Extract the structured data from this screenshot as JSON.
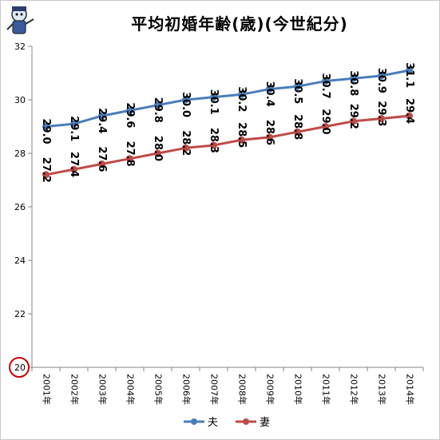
{
  "chart_data": {
    "type": "line",
    "title": "平均初婚年齢(歳)(今世紀分)",
    "categories": [
      "2001年",
      "2002年",
      "2003年",
      "2004年",
      "2005年",
      "2006年",
      "2007年",
      "2008年",
      "2009年",
      "2010年",
      "2011年",
      "2012年",
      "2013年",
      "2014年"
    ],
    "series": [
      {
        "name": "夫",
        "color": "#4a7ebb",
        "values": [
          29.0,
          29.1,
          29.4,
          29.6,
          29.8,
          30.0,
          30.1,
          30.2,
          30.4,
          30.5,
          30.7,
          30.8,
          30.9,
          31.1
        ]
      },
      {
        "name": "妻",
        "color": "#be4b48",
        "values": [
          27.2,
          27.4,
          27.6,
          27.8,
          28.0,
          28.2,
          28.3,
          28.5,
          28.6,
          28.8,
          29.0,
          29.2,
          29.3,
          29.4
        ]
      }
    ],
    "ylim": [
      20,
      32
    ],
    "yticks": [
      20,
      22,
      24,
      26,
      28,
      30,
      32
    ],
    "grid": false,
    "legend": "bottom",
    "highlight_tick": {
      "value": "20",
      "color": "#d00000"
    }
  }
}
